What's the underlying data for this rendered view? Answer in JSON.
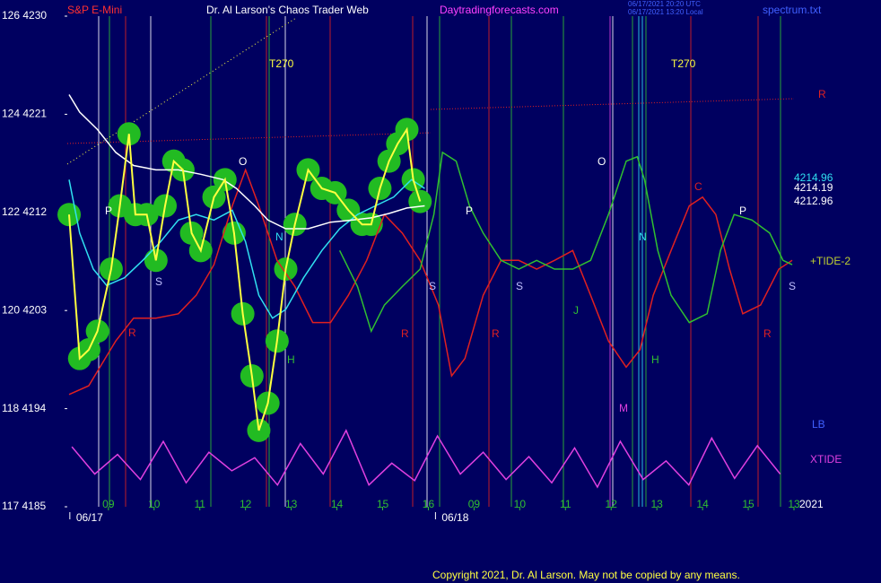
{
  "chart_data": {
    "type": "line",
    "title": "Dr. Al Larson's Chaos Trader Web",
    "instrument": "S&P E-Mini",
    "website": "Daytradingforecasts.com",
    "file": "spectrum.txt",
    "timestamps": [
      "06/17/2021 20:20 UTC",
      "06/17/2021 13:20 Local"
    ],
    "copyright": "Copyright 2021, Dr. Al Larson. May not be copied by any means.",
    "year": "2021",
    "dates": [
      {
        "value": 0,
        "label": "06/17"
      },
      {
        "value": 8,
        "label": "06/18"
      }
    ],
    "xlim": [
      -0.9,
      15
    ],
    "xticks": [
      {
        "value": 0,
        "label": "09"
      },
      {
        "value": 1,
        "label": "10"
      },
      {
        "value": 2,
        "label": "11"
      },
      {
        "value": 3,
        "label": "12"
      },
      {
        "value": 4,
        "label": "13"
      },
      {
        "value": 5,
        "label": "14"
      },
      {
        "value": 6,
        "label": "15"
      },
      {
        "value": 7,
        "label": "16"
      },
      {
        "value": 8,
        "label": "09"
      },
      {
        "value": 9,
        "label": "10"
      },
      {
        "value": 10,
        "label": "11"
      },
      {
        "value": 11,
        "label": "12"
      },
      {
        "value": 12,
        "label": "13"
      },
      {
        "value": 13,
        "label": "14"
      },
      {
        "value": 14,
        "label": "15"
      },
      {
        "value": 15,
        "label": "13"
      }
    ],
    "ylim": [
      4185,
      4230
    ],
    "yticks": [
      {
        "value": 4230,
        "label": "126 4230"
      },
      {
        "value": 4221,
        "label": "124 4221"
      },
      {
        "value": 4212,
        "label": "122 4212"
      },
      {
        "value": 4203,
        "label": "120 4203"
      },
      {
        "value": 4194,
        "label": "118 4194"
      },
      {
        "value": 4185,
        "label": "117 4185"
      }
    ],
    "series": [
      {
        "name": "Price",
        "color": "#ffff40",
        "highlight": "#22bb22",
        "x": [
          -0.86,
          -0.63,
          -0.43,
          -0.24,
          0.06,
          0.25,
          0.45,
          0.59,
          0.84,
          1.04,
          1.24,
          1.43,
          1.63,
          1.82,
          2.02,
          2.31,
          2.55,
          2.75,
          2.94,
          3.14,
          3.29,
          3.49,
          3.69,
          3.88,
          4.08,
          4.37,
          4.67,
          4.96,
          5.25,
          5.55,
          5.75,
          5.94,
          6.14,
          6.33,
          6.53,
          6.67,
          6.82
        ],
        "values": [
          4211.8,
          4198.6,
          4199.4,
          4201.1,
          4206.8,
          4212.6,
          4219.2,
          4211.8,
          4211.8,
          4207.6,
          4212.6,
          4216.7,
          4215.9,
          4210.1,
          4208.5,
          4213.4,
          4215.0,
          4210.1,
          4202.7,
          4197.0,
          4192.0,
          4194.5,
          4200.2,
          4206.8,
          4210.9,
          4215.9,
          4214.2,
          4213.8,
          4212.2,
          4210.9,
          4210.9,
          4214.2,
          4216.7,
          4218.3,
          4219.6,
          4215.0,
          4213.0
        ]
      },
      {
        "name": "MA slow",
        "color": "#ffffff",
        "x": [
          -0.86,
          -0.63,
          -0.24,
          0.16,
          0.55,
          1.04,
          1.53,
          2.02,
          2.51,
          2.8,
          3.2,
          3.49,
          3.88,
          4.37,
          4.86,
          5.35,
          5.75,
          6.14,
          6.53,
          6.92
        ],
        "values": [
          4222.8,
          4221.2,
          4219.6,
          4217.5,
          4216.3,
          4215.9,
          4215.9,
          4215.5,
          4215.0,
          4214.2,
          4212.6,
          4211.3,
          4210.5,
          4210.5,
          4211.1,
          4211.3,
          4211.5,
          4211.9,
          4212.4,
          4212.6
        ]
      },
      {
        "name": "MA fast",
        "color": "#30e0f0",
        "x": [
          -0.86,
          -0.63,
          -0.33,
          -0.04,
          0.35,
          0.75,
          1.14,
          1.53,
          1.92,
          2.31,
          2.71,
          3.0,
          3.29,
          3.59,
          3.88,
          4.27,
          4.67,
          5.06,
          5.45,
          5.84,
          6.24,
          6.63,
          6.92
        ],
        "values": [
          4215.0,
          4210.1,
          4206.8,
          4205.3,
          4206.0,
          4207.6,
          4209.3,
          4211.3,
          4211.8,
          4211.3,
          4212.2,
          4209.3,
          4204.4,
          4202.3,
          4203.1,
          4206.0,
          4208.5,
          4210.5,
          4211.8,
          4212.6,
          4213.4,
          4215.0,
          4214.2
        ]
      },
      {
        "name": "Forecast R",
        "color": "#e02020",
        "x": [
          -0.86,
          -0.43,
          0.16,
          0.55,
          1.04,
          1.53,
          1.92,
          2.31,
          2.71,
          3.0,
          3.29,
          3.69,
          4.08,
          4.47,
          4.86,
          5.25,
          5.65,
          6.04,
          6.43,
          6.82,
          7.22,
          7.51,
          7.8,
          8.2,
          8.59,
          8.98,
          9.37,
          9.76,
          10.16,
          10.55,
          10.94,
          11.33,
          11.63,
          11.92,
          12.31,
          12.71,
          13.0,
          13.29,
          13.59,
          13.88,
          14.27,
          14.67,
          14.96
        ],
        "values": [
          4195.3,
          4196.1,
          4200.2,
          4202.3,
          4202.3,
          4202.7,
          4204.4,
          4207.2,
          4212.6,
          4215.9,
          4212.6,
          4207.6,
          4205.2,
          4201.9,
          4201.9,
          4204.4,
          4207.6,
          4211.8,
          4210.1,
          4207.6,
          4203.5,
          4197.0,
          4198.6,
          4204.4,
          4207.6,
          4207.6,
          4206.8,
          4207.6,
          4208.5,
          4204.4,
          4200.2,
          4197.8,
          4199.4,
          4204.4,
          4208.5,
          4212.6,
          4213.4,
          4211.8,
          4206.8,
          4202.7,
          4203.5,
          4206.8,
          4207.6
        ]
      },
      {
        "name": "TIDE-2",
        "color": "#30c030",
        "x": [
          5.06,
          5.45,
          5.75,
          6.04,
          6.43,
          6.82,
          7.12,
          7.31,
          7.61,
          7.9,
          8.2,
          8.59,
          8.98,
          9.37,
          9.76,
          10.16,
          10.55,
          10.94,
          11.33,
          11.57,
          11.73,
          12.02,
          12.31,
          12.71,
          13.1,
          13.39,
          13.69,
          14.08,
          14.47,
          14.76,
          14.96
        ],
        "values": [
          4208.5,
          4205.2,
          4201.1,
          4203.5,
          4205.2,
          4206.8,
          4211.8,
          4217.5,
          4216.7,
          4212.6,
          4210.1,
          4207.6,
          4206.8,
          4207.6,
          4206.8,
          4206.8,
          4207.6,
          4211.8,
          4216.7,
          4217.1,
          4215.0,
          4208.5,
          4204.4,
          4201.9,
          4202.7,
          4208.5,
          4211.8,
          4211.3,
          4210.1,
          4207.6,
          4207.2
        ]
      },
      {
        "name": "XTIDE",
        "color": "#e040e0",
        "x": [
          -0.8,
          -0.3,
          0.2,
          0.7,
          1.2,
          1.7,
          2.2,
          2.7,
          3.2,
          3.7,
          4.2,
          4.7,
          5.2,
          5.7,
          6.2,
          6.7,
          7.2,
          7.7,
          8.2,
          8.7,
          9.2,
          9.7,
          10.2,
          10.7,
          11.2,
          11.7,
          12.2,
          12.7,
          13.2,
          13.7,
          14.2,
          14.7
        ],
        "values": [
          4190.5,
          4188,
          4189.8,
          4187.5,
          4191,
          4187.2,
          4190,
          4188.3,
          4189.5,
          4187,
          4190.8,
          4188,
          4192,
          4187,
          4189,
          4187.4,
          4191.5,
          4188,
          4190,
          4187.5,
          4189.6,
          4187.2,
          4190.4,
          4186.8,
          4191,
          4187.5,
          4189.2,
          4187,
          4191.3,
          4187.6,
          4190.6,
          4188
        ]
      }
    ],
    "annotations": [
      {
        "text": "T270",
        "color": "#ffff40"
      },
      {
        "text": "T270",
        "color": "#ffff40"
      },
      {
        "text": "R",
        "color": "#e02020"
      },
      {
        "text": "P",
        "color": "#ffffff"
      },
      {
        "text": "O",
        "color": "#ffffff"
      },
      {
        "text": "N",
        "color": "#30e0f0"
      },
      {
        "text": "H",
        "color": "#30c030"
      },
      {
        "text": "R",
        "color": "#e02020"
      },
      {
        "text": "S",
        "color": "#c0c0ff"
      },
      {
        "text": "O",
        "color": "#ffffff"
      },
      {
        "text": "P",
        "color": "#ffffff"
      },
      {
        "text": "S",
        "color": "#c0c0ff"
      },
      {
        "text": "S",
        "color": "#c0c0ff"
      },
      {
        "text": "R",
        "color": "#e02020"
      },
      {
        "text": "R",
        "color": "#e02020"
      },
      {
        "text": "J",
        "color": "#30c030"
      },
      {
        "text": "N",
        "color": "#30e0f0"
      },
      {
        "text": "H",
        "color": "#30c030"
      },
      {
        "text": "M",
        "color": "#e040e0"
      },
      {
        "text": "C",
        "color": "#e02020"
      },
      {
        "text": "P",
        "color": "#ffffff"
      },
      {
        "text": "R",
        "color": "#e02020"
      },
      {
        "text": "S",
        "color": "#c0c0ff"
      },
      {
        "text": "4214.96",
        "color": "#30e0f0"
      },
      {
        "text": "4214.19",
        "color": "#ffffff"
      },
      {
        "text": "4212.96",
        "color": "#ffffff"
      },
      {
        "text": "+TIDE-2",
        "color": "#c0d030"
      },
      {
        "text": "LB",
        "color": "#4060ff"
      },
      {
        "text": "XTIDE",
        "color": "#e040e0"
      }
    ]
  }
}
